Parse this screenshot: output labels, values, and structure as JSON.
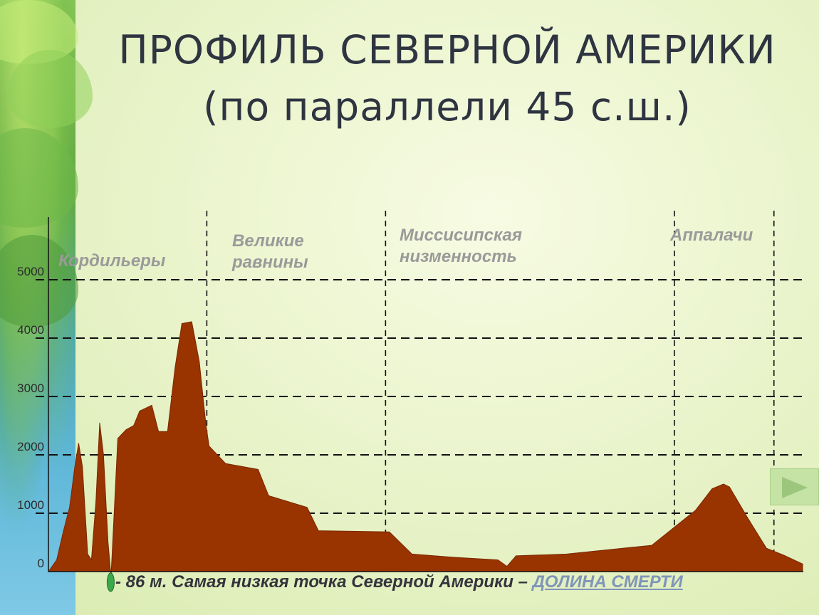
{
  "slide": {
    "title_line1": "ПРОФИЛЬ СЕВЕРНОЙ АМЕРИКИ",
    "title_line2": "(по параллели 45  с.ш.)",
    "caption_prefix": "- 86 м. Самая низкая точка Северной Америки – ",
    "caption_link": "ДОЛИНА СМЕРТИ",
    "next_icon": "play-triangle-icon"
  },
  "chart_data": {
    "type": "area",
    "title": "ПРОФИЛЬ СЕВЕРНОЙ АМЕРИКИ (по параллели 45  с.ш.)",
    "xlabel": "",
    "ylabel": "",
    "ylim": [
      0,
      5000
    ],
    "yticks": [
      "0",
      "1000",
      "2000",
      "3000",
      "4000",
      "5000"
    ],
    "grid": true,
    "fill_color": "#993300",
    "regions": [
      "Кордильеры",
      "Великие равнины",
      "Миссисипская низменность",
      "Аппалачи"
    ],
    "region_bounds": [
      0.21,
      0.447,
      0.83,
      0.962
    ],
    "profile": [
      [
        0.0,
        0
      ],
      [
        0.011,
        200
      ],
      [
        0.02,
        700
      ],
      [
        0.028,
        1100
      ],
      [
        0.035,
        1800
      ],
      [
        0.04,
        2200
      ],
      [
        0.045,
        1800
      ],
      [
        0.052,
        300
      ],
      [
        0.057,
        200
      ],
      [
        0.063,
        1200
      ],
      [
        0.068,
        2550
      ],
      [
        0.073,
        2000
      ],
      [
        0.079,
        500
      ],
      [
        0.083,
        -86
      ],
      [
        0.089,
        1500
      ],
      [
        0.092,
        2280
      ],
      [
        0.103,
        2430
      ],
      [
        0.113,
        2500
      ],
      [
        0.121,
        2750
      ],
      [
        0.137,
        2850
      ],
      [
        0.146,
        2400
      ],
      [
        0.158,
        2400
      ],
      [
        0.168,
        3500
      ],
      [
        0.177,
        4250
      ],
      [
        0.19,
        4280
      ],
      [
        0.2,
        3600
      ],
      [
        0.209,
        2500
      ],
      [
        0.213,
        2150
      ],
      [
        0.235,
        1850
      ],
      [
        0.278,
        1750
      ],
      [
        0.292,
        1300
      ],
      [
        0.343,
        1100
      ],
      [
        0.358,
        700
      ],
      [
        0.452,
        680
      ],
      [
        0.482,
        300
      ],
      [
        0.542,
        240
      ],
      [
        0.596,
        200
      ],
      [
        0.608,
        90
      ],
      [
        0.62,
        270
      ],
      [
        0.687,
        300
      ],
      [
        0.8,
        450
      ],
      [
        0.858,
        1050
      ],
      [
        0.88,
        1420
      ],
      [
        0.895,
        1500
      ],
      [
        0.903,
        1450
      ],
      [
        0.928,
        900
      ],
      [
        0.952,
        400
      ],
      [
        0.975,
        280
      ],
      [
        1.0,
        130
      ],
      [
        1.0,
        0
      ]
    ]
  }
}
